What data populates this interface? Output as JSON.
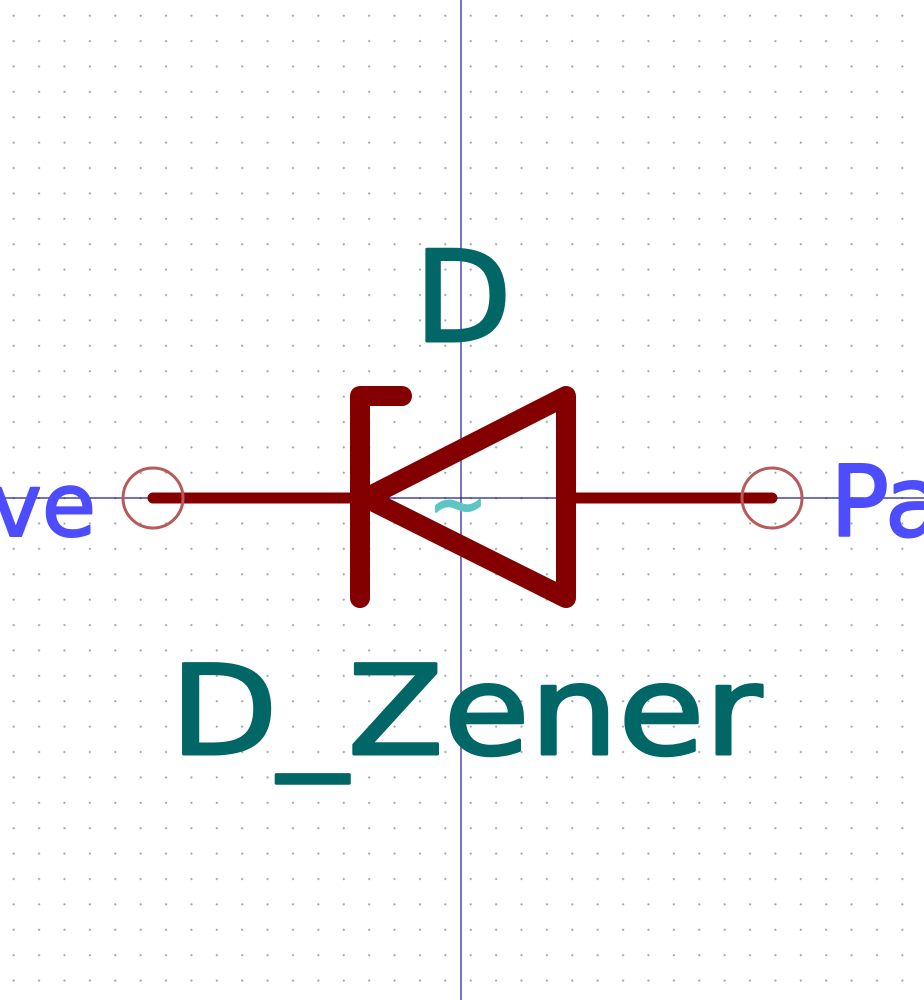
{
  "symbol": {
    "reference": "D",
    "value": "D_Zener",
    "ac_marker": "~"
  },
  "pins": {
    "left": {
      "name_fragment": "ve"
    },
    "right": {
      "name_fragment": "Pa"
    }
  },
  "colors": {
    "background": "#ffffff",
    "grid_dot": "#a6a6a6",
    "axis": "#1a1aa0",
    "body": "#840000",
    "pin_end_circle": "#b85a5a",
    "field_text": "#006666",
    "pin_name": "#4d4dff",
    "ac_marker": "#5fc4c4"
  }
}
